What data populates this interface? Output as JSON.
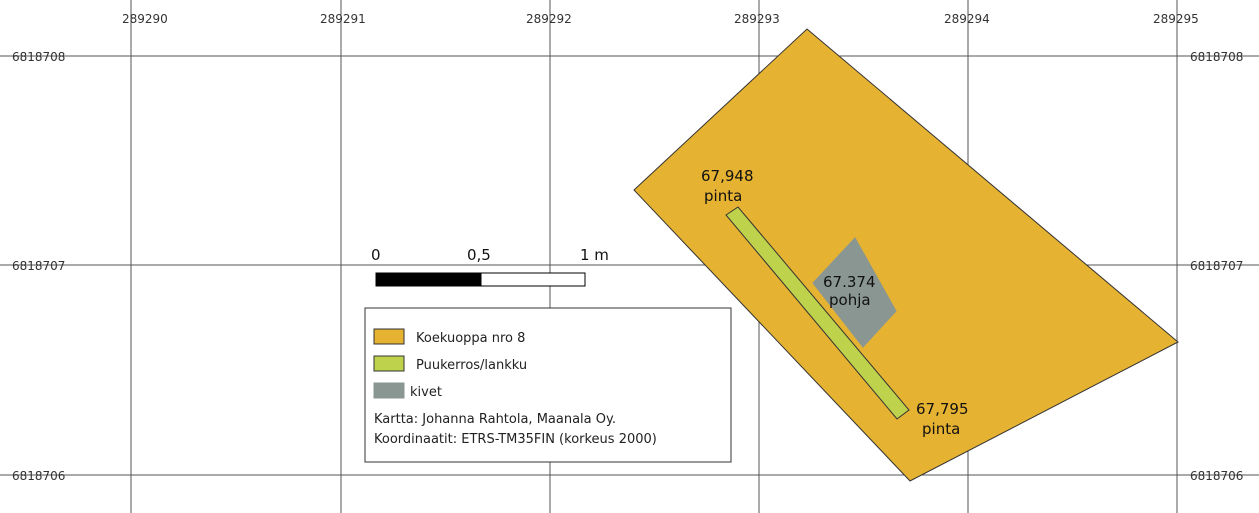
{
  "grid": {
    "x_labels": [
      "289290",
      "289291",
      "289292",
      "289293",
      "289294",
      "289295"
    ],
    "y_labels": [
      "6818708",
      "6818707",
      "6818706"
    ]
  },
  "features": {
    "pit": {
      "name": "Koekuoppa nro 8",
      "color": "#e5b232"
    },
    "plank": {
      "name": "Puukerros/lankku",
      "color": "#bfd24c"
    },
    "stones": {
      "name": "kivet",
      "color": "#8a9692"
    }
  },
  "annotations": {
    "top_value": "67,948",
    "top_label": "pinta",
    "bottom_value": "67,795",
    "bottom_label": "pinta",
    "mid_value": "67.374",
    "mid_label": "pohja"
  },
  "scalebar": {
    "labels": [
      "0",
      "0,5",
      "1 m"
    ]
  },
  "legend": {
    "items": [
      {
        "label": "Koekuoppa nro 8",
        "color": "#e5b232"
      },
      {
        "label": "Puukerros/lankku",
        "color": "#bfd24c"
      },
      {
        "label": "kivet",
        "color": "#8a9692"
      }
    ],
    "credit": "Kartta: Johanna Rahtola, Maanala Oy.",
    "crs": "Koordinaatit: ETRS-TM35FIN (korkeus 2000)"
  }
}
